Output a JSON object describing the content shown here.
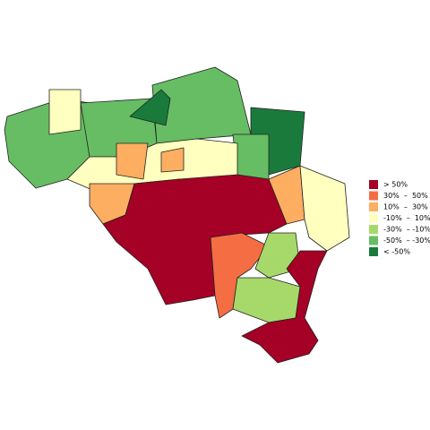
{
  "legend": [
    {
      "label": "> 50%",
      "color": "#a50026"
    },
    {
      "label": "30%  –  50%",
      "color": "#f46d43"
    },
    {
      "label": "10%  –  30%",
      "color": "#fdae61"
    },
    {
      "label": "-10%  –  10%",
      "color": "#ffffbf"
    },
    {
      "label": "-30%  – -10%",
      "color": "#a6d96a"
    },
    {
      "label": "-50%  – -30%",
      "color": "#66bd63"
    },
    {
      "label": "< -50%",
      "color": "#1a7a3c"
    }
  ]
}
